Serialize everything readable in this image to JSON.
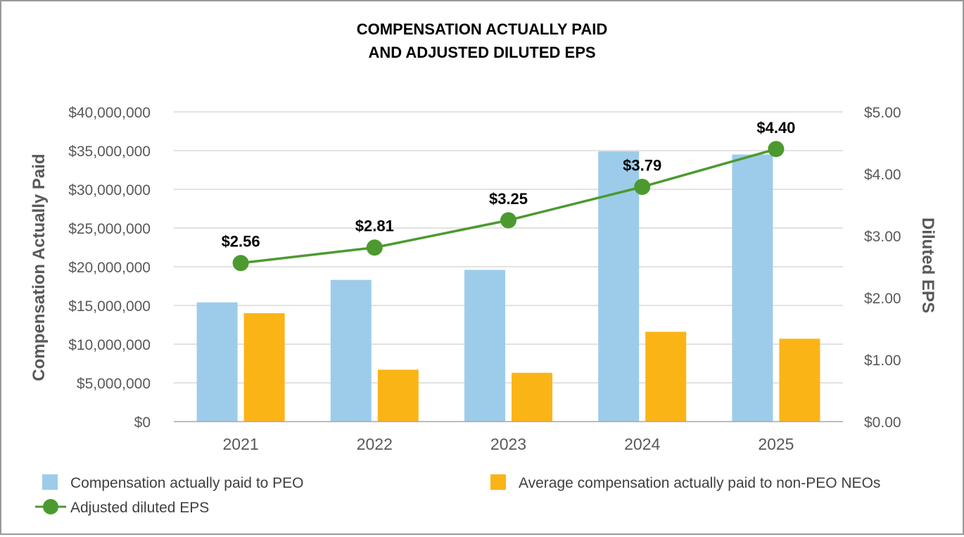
{
  "chart_data": {
    "type": "bar",
    "title_line1": "COMPENSATION ACTUALLY PAID",
    "title_line2": "AND ADJUSTED DILUTED EPS",
    "categories": [
      "2021",
      "2022",
      "2023",
      "2024",
      "2025"
    ],
    "ylabel": "Compensation Actually Paid",
    "y2label": "Diluted EPS",
    "ylim": [
      0,
      40000000
    ],
    "y2lim": [
      0,
      5
    ],
    "y_ticks": [
      {
        "value": 0,
        "label": "$0"
      },
      {
        "value": 5000000,
        "label": "$5,000,000"
      },
      {
        "value": 10000000,
        "label": "$10,000,000"
      },
      {
        "value": 15000000,
        "label": "$15,000,000"
      },
      {
        "value": 20000000,
        "label": "$20,000,000"
      },
      {
        "value": 25000000,
        "label": "$25,000,000"
      },
      {
        "value": 30000000,
        "label": "$30,000,000"
      },
      {
        "value": 35000000,
        "label": "$35,000,000"
      },
      {
        "value": 40000000,
        "label": "$40,000,000"
      }
    ],
    "y2_ticks": [
      {
        "value": 0,
        "label": "$0.00"
      },
      {
        "value": 1,
        "label": "$1.00"
      },
      {
        "value": 2,
        "label": "$2.00"
      },
      {
        "value": 3,
        "label": "$3.00"
      },
      {
        "value": 4,
        "label": "$4.00"
      },
      {
        "value": 5,
        "label": "$5.00"
      }
    ],
    "grid": true,
    "legend_position": "bottom",
    "series": [
      {
        "name": "Compensation actually paid to PEO",
        "type": "bar",
        "axis": "left",
        "color": "#9DCCEB",
        "values": [
          15400000,
          18300000,
          19600000,
          34900000,
          34500000
        ]
      },
      {
        "name": "Average compensation actually paid to non-PEO NEOs",
        "type": "bar",
        "axis": "left",
        "color": "#FBB416",
        "values": [
          14000000,
          6700000,
          6300000,
          11600000,
          10700000
        ]
      },
      {
        "name": "Adjusted diluted EPS",
        "type": "line",
        "axis": "right",
        "color": "#4C9A2F",
        "values": [
          2.56,
          2.81,
          3.25,
          3.79,
          4.4
        ],
        "labels": [
          "$2.56",
          "$2.81",
          "$3.25",
          "$3.79",
          "$4.40"
        ]
      }
    ]
  }
}
